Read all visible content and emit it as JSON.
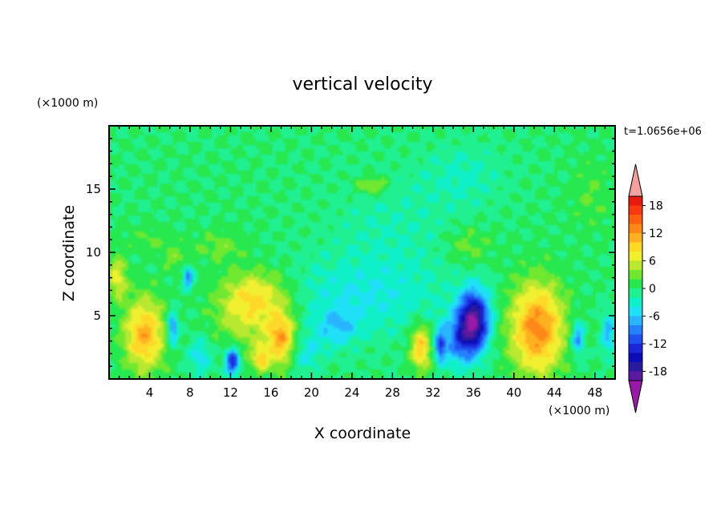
{
  "chart_data": {
    "type": "heatmap",
    "title": "vertical velocity",
    "xlabel": "X coordinate",
    "ylabel": "Z coordinate",
    "x_unit": "(×1000 m)",
    "y_unit": "(×1000 m)",
    "time_label": "t=1.0656e+06",
    "xlim": [
      0,
      50
    ],
    "ylim": [
      0,
      20
    ],
    "x_ticks": [
      4,
      8,
      12,
      16,
      20,
      24,
      28,
      32,
      36,
      40,
      44,
      48
    ],
    "y_ticks": [
      5,
      10,
      15
    ],
    "colorbar": {
      "min": -20,
      "max": 20,
      "tick_values": [
        18,
        12,
        6,
        0,
        -6,
        -12,
        -18
      ],
      "tick_labels": [
        "18",
        "12",
        "6",
        "0",
        "-6",
        "-12",
        "-18"
      ],
      "levels": [
        {
          "from": -21,
          "to": -20,
          "color": "#9a1aa8"
        },
        {
          "from": -20,
          "to": -18,
          "color": "#5a1aa0"
        },
        {
          "from": -18,
          "to": -16,
          "color": "#2a1a9c"
        },
        {
          "from": -16,
          "to": -14,
          "color": "#0c0cb8"
        },
        {
          "from": -14,
          "to": -12,
          "color": "#1a26d8"
        },
        {
          "from": -12,
          "to": -10,
          "color": "#1f50f0"
        },
        {
          "from": -10,
          "to": -8,
          "color": "#2580ff"
        },
        {
          "from": -8,
          "to": -6,
          "color": "#28b4ff"
        },
        {
          "from": -6,
          "to": -4,
          "color": "#20e0f8"
        },
        {
          "from": -4,
          "to": -2,
          "color": "#10f0c8"
        },
        {
          "from": -2,
          "to": 0,
          "color": "#20f090"
        },
        {
          "from": 0,
          "to": 2,
          "color": "#28e850"
        },
        {
          "from": 2,
          "to": 4,
          "color": "#70e830"
        },
        {
          "from": 4,
          "to": 6,
          "color": "#b8e830"
        },
        {
          "from": 6,
          "to": 8,
          "color": "#f0f030"
        },
        {
          "from": 8,
          "to": 10,
          "color": "#ffd828"
        },
        {
          "from": 10,
          "to": 12,
          "color": "#ffb020"
        },
        {
          "from": 12,
          "to": 14,
          "color": "#ff8818"
        },
        {
          "from": 14,
          "to": 16,
          "color": "#ff6010"
        },
        {
          "from": 16,
          "to": 18,
          "color": "#f83a10"
        },
        {
          "from": 18,
          "to": 20,
          "color": "#e81a10"
        },
        {
          "from": 20,
          "to": 21,
          "color": "#f4a0a0"
        }
      ]
    },
    "background_value": 0,
    "field_features": [
      {
        "x": 3.5,
        "z": 3.5,
        "sx": 2.0,
        "sz": 2.8,
        "w": 11
      },
      {
        "x": 0.8,
        "z": 8.0,
        "sx": 1.0,
        "sz": 1.6,
        "w": 7
      },
      {
        "x": 14.5,
        "z": 6.5,
        "sx": 3.5,
        "sz": 2.0,
        "w": 8
      },
      {
        "x": 17.0,
        "z": 3.2,
        "sx": 1.4,
        "sz": 2.0,
        "w": 11
      },
      {
        "x": 13.5,
        "z": 4.0,
        "sx": 3.0,
        "sz": 2.5,
        "w": 4
      },
      {
        "x": 12.2,
        "z": 1.4,
        "sx": 0.7,
        "sz": 1.1,
        "w": -14
      },
      {
        "x": 15.0,
        "z": 1.6,
        "sx": 0.8,
        "sz": 1.0,
        "w": 8
      },
      {
        "x": 6.3,
        "z": 4.0,
        "sx": 0.5,
        "sz": 1.3,
        "w": -10
      },
      {
        "x": 7.8,
        "z": 8.0,
        "sx": 0.5,
        "sz": 0.9,
        "w": -9
      },
      {
        "x": 36.0,
        "z": 4.6,
        "sx": 1.5,
        "sz": 2.3,
        "w": -19
      },
      {
        "x": 34.5,
        "z": 3.0,
        "sx": 1.8,
        "sz": 2.0,
        "w": -8
      },
      {
        "x": 42.3,
        "z": 4.0,
        "sx": 2.6,
        "sz": 3.6,
        "w": 13
      },
      {
        "x": 30.8,
        "z": 2.5,
        "sx": 1.0,
        "sz": 1.8,
        "w": 10
      },
      {
        "x": 32.7,
        "z": 2.6,
        "sx": 0.5,
        "sz": 1.2,
        "w": -10
      },
      {
        "x": 46.3,
        "z": 3.2,
        "sx": 0.6,
        "sz": 1.3,
        "w": -9
      },
      {
        "x": 49.3,
        "z": 3.6,
        "sx": 0.6,
        "sz": 1.6,
        "w": -7
      },
      {
        "x": 26.0,
        "z": 15.3,
        "sx": 1.6,
        "sz": 0.7,
        "w": 5
      },
      {
        "x": 25.0,
        "z": 6.5,
        "sx": 8.0,
        "sz": 3.0,
        "w": -4
      },
      {
        "x": 22.5,
        "z": 4.0,
        "sx": 2.0,
        "sz": 1.5,
        "w": -5
      },
      {
        "x": 11.0,
        "z": 10.5,
        "sx": 2.5,
        "sz": 1.2,
        "w": 3
      },
      {
        "x": 35.5,
        "z": 10.5,
        "sx": 2.2,
        "sz": 1.5,
        "w": 3
      },
      {
        "x": 6.5,
        "z": 9.5,
        "sx": 1.2,
        "sz": 1.0,
        "w": 3
      },
      {
        "x": 4.0,
        "z": 11.0,
        "sx": 2.5,
        "sz": 1.0,
        "w": 2
      },
      {
        "x": 28.0,
        "z": 12.0,
        "sx": 6.0,
        "sz": 4.0,
        "w": -2
      },
      {
        "x": 35.0,
        "z": 16.0,
        "sx": 4.0,
        "sz": 2.5,
        "w": -2.5
      },
      {
        "x": 47.5,
        "z": 14.5,
        "sx": 2.0,
        "sz": 3.0,
        "w": 2
      },
      {
        "x": 19.5,
        "z": 2.0,
        "sx": 1.5,
        "sz": 1.5,
        "w": -4
      },
      {
        "x": 9.0,
        "z": 1.8,
        "sx": 1.2,
        "sz": 1.4,
        "w": -5
      }
    ]
  }
}
